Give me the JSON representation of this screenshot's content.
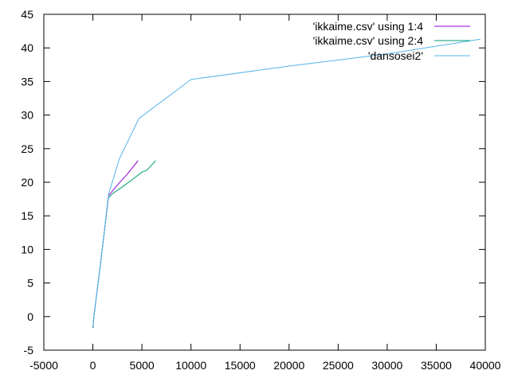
{
  "chart_data": {
    "type": "line",
    "title": "",
    "xlabel": "",
    "ylabel": "",
    "xlim": [
      -5000,
      40000
    ],
    "ylim": [
      -5,
      45
    ],
    "x_ticks": [
      -5000,
      0,
      5000,
      10000,
      15000,
      20000,
      25000,
      30000,
      35000,
      40000
    ],
    "y_ticks": [
      -5,
      0,
      5,
      10,
      15,
      20,
      25,
      30,
      35,
      40,
      45
    ],
    "grid": false,
    "legend_position": "top-right",
    "series": [
      {
        "name": "'ikkaime.csv' using 1:4",
        "color": "#9400d3",
        "points": [
          [
            0,
            -1.7
          ],
          [
            100,
            0
          ],
          [
            700,
            7
          ],
          [
            1200,
            13
          ],
          [
            1600,
            18
          ],
          [
            2500,
            19.6
          ],
          [
            3500,
            21.2
          ],
          [
            4600,
            23.2
          ]
        ]
      },
      {
        "name": "'ikkaime.csv' using 2:4",
        "color": "#009e73",
        "points": [
          [
            0,
            -1.7
          ],
          [
            100,
            0
          ],
          [
            700,
            7
          ],
          [
            1200,
            13
          ],
          [
            1550,
            17.6
          ],
          [
            2000,
            18.3
          ],
          [
            3200,
            19.5
          ],
          [
            4200,
            20.6
          ],
          [
            5000,
            21.5
          ],
          [
            5500,
            21.8
          ],
          [
            6400,
            23.2
          ]
        ]
      },
      {
        "name": "'dansosei2'",
        "color": "#56b4e9",
        "points": [
          [
            0,
            -1.5
          ],
          [
            100,
            0
          ],
          [
            700,
            7
          ],
          [
            1200,
            13
          ],
          [
            1600,
            18.2
          ],
          [
            2700,
            23.5
          ],
          [
            4700,
            29.5
          ],
          [
            10000,
            35.3
          ],
          [
            20000,
            37.3
          ],
          [
            30000,
            39.1
          ],
          [
            39500,
            41.3
          ]
        ]
      }
    ]
  }
}
